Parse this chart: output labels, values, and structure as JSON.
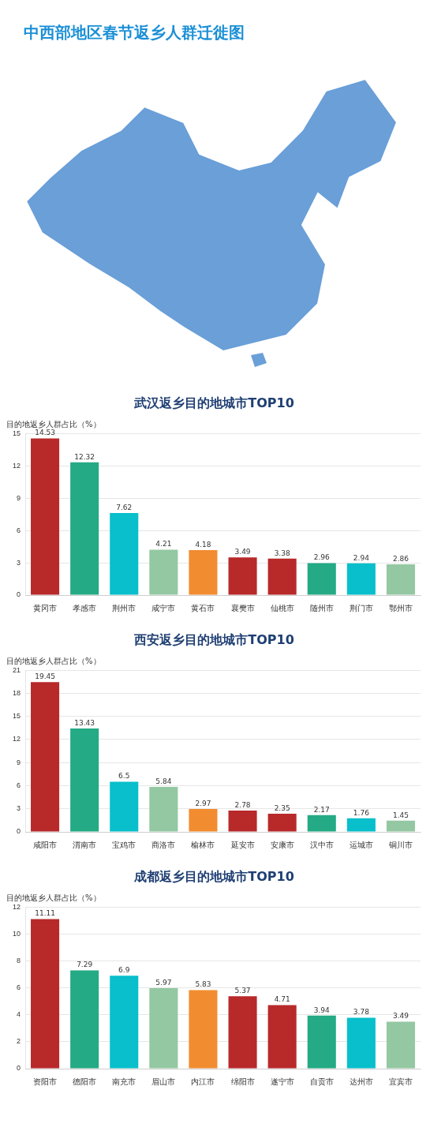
{
  "chart_data": [
    {
      "type": "other",
      "title": "中西部地区春节返乡人群迁徙图"
    },
    {
      "type": "bar",
      "title": "武汉返乡目的地城市TOP10",
      "ylabel": "目的地返乡人群占比（%）",
      "categories": [
        "黄冈市",
        "孝感市",
        "荆州市",
        "咸宁市",
        "黄石市",
        "襄樊市",
        "仙桃市",
        "随州市",
        "荆门市",
        "鄂州市"
      ],
      "values": [
        14.53,
        12.32,
        7.62,
        4.21,
        4.18,
        3.49,
        3.38,
        2.96,
        2.94,
        2.86
      ],
      "colors": [
        "#b8292a",
        "#24aa84",
        "#08bfcb",
        "#93c8a2",
        "#f28c30",
        "#b8292a",
        "#b8292a",
        "#24aa84",
        "#08bfcb",
        "#93c8a2"
      ],
      "ylim": [
        0,
        15
      ],
      "yticks": [
        0,
        3,
        6,
        9,
        12,
        15
      ],
      "grid": "y",
      "data_labels": true
    },
    {
      "type": "bar",
      "title": "西安返乡目的地城市TOP10",
      "ylabel": "目的地返乡人群占比（%）",
      "categories": [
        "咸阳市",
        "渭南市",
        "宝鸡市",
        "商洛市",
        "榆林市",
        "延安市",
        "安康市",
        "汉中市",
        "运城市",
        "铜川市"
      ],
      "values": [
        19.45,
        13.43,
        6.5,
        5.84,
        2.97,
        2.78,
        2.35,
        2.17,
        1.76,
        1.45
      ],
      "colors": [
        "#b8292a",
        "#24aa84",
        "#08bfcb",
        "#93c8a2",
        "#f28c30",
        "#b8292a",
        "#b8292a",
        "#24aa84",
        "#08bfcb",
        "#93c8a2"
      ],
      "ylim": [
        0,
        21
      ],
      "yticks": [
        0,
        3,
        6,
        9,
        12,
        15,
        18,
        21
      ],
      "grid": "y",
      "data_labels": true
    },
    {
      "type": "bar",
      "title": "成都返乡目的地城市TOP10",
      "ylabel": "目的地返乡人群占比（%）",
      "categories": [
        "资阳市",
        "德阳市",
        "南充市",
        "眉山市",
        "内江市",
        "绵阳市",
        "遂宁市",
        "自贡市",
        "达州市",
        "宜宾市"
      ],
      "values": [
        11.11,
        7.29,
        6.9,
        5.97,
        5.83,
        5.37,
        4.71,
        3.94,
        3.78,
        3.49
      ],
      "colors": [
        "#b8292a",
        "#24aa84",
        "#08bfcb",
        "#93c8a2",
        "#f28c30",
        "#b8292a",
        "#b8292a",
        "#24aa84",
        "#08bfcb",
        "#93c8a2"
      ],
      "ylim": [
        0,
        12
      ],
      "yticks": [
        0,
        2,
        4,
        6,
        8,
        10,
        12
      ],
      "grid": "y",
      "data_labels": true
    }
  ]
}
